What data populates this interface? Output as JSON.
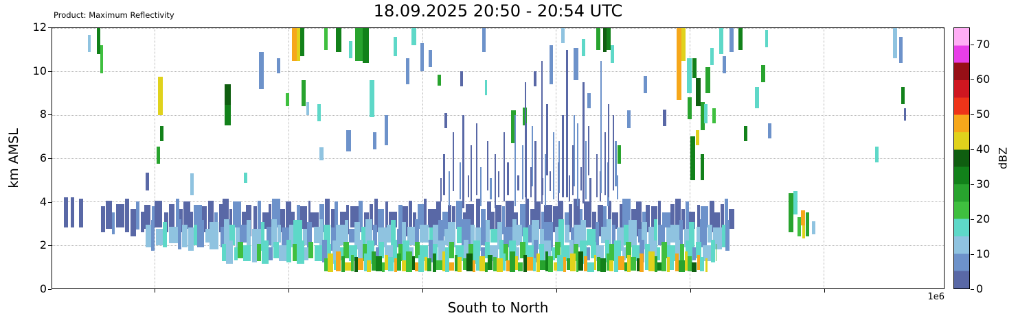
{
  "header": {
    "product_label": "Product: Maximum Reflectivity",
    "title": "18.09.2025 20:50 - 20:54 UTC"
  },
  "axes": {
    "y_label": "km AMSL",
    "x_label": "South to North",
    "x_offset_label": "1e6",
    "y_ticks": [
      0,
      2,
      4,
      6,
      8,
      10,
      12
    ],
    "y_max": 12
  },
  "colorbar": {
    "label": "dBZ",
    "ticks": [
      0,
      10,
      20,
      30,
      40,
      50,
      60,
      70
    ],
    "min": 0,
    "max": 75
  },
  "chart_data": {
    "type": "heatmap",
    "title": "18.09.2025 20:50 - 20:54 UTC",
    "xlabel": "South to North",
    "ylabel": "km AMSL",
    "ylim": [
      0,
      12
    ],
    "x_axis_offset_note": "1e6",
    "grid": true,
    "x_gridlines": [
      0.115,
      0.265,
      0.415,
      0.565,
      0.715,
      0.865
    ],
    "dbz_scale": [
      {
        "v": 0,
        "c": "#5968a6"
      },
      {
        "v": 5,
        "c": "#6d92ca"
      },
      {
        "v": 10,
        "c": "#8fc3e0"
      },
      {
        "v": 15,
        "c": "#5ed8c8"
      },
      {
        "v": 20,
        "c": "#3fbf3f"
      },
      {
        "v": 25,
        "c": "#28a32e"
      },
      {
        "v": 30,
        "c": "#12811a"
      },
      {
        "v": 35,
        "c": "#0f5e10"
      },
      {
        "v": 40,
        "c": "#e0d21c"
      },
      {
        "v": 45,
        "c": "#f6a71b"
      },
      {
        "v": 50,
        "c": "#ee3419"
      },
      {
        "v": 55,
        "c": "#cf1620"
      },
      {
        "v": 60,
        "c": "#970f16"
      },
      {
        "v": 65,
        "c": "#e83ee8"
      },
      {
        "v": 70,
        "c": "#ffaef5"
      }
    ],
    "cells": [
      [
        0.013,
        0.005,
        2.8,
        4.2,
        0
      ],
      [
        0.021,
        0.004,
        2.8,
        4.2,
        0
      ],
      [
        0.03,
        0.005,
        2.8,
        4.15,
        0
      ],
      [
        0.04,
        0.003,
        10.9,
        11.7,
        10
      ],
      [
        0.05,
        0.004,
        10.8,
        12,
        30
      ],
      [
        0.054,
        0.003,
        9.9,
        11.2,
        20
      ],
      [
        0.105,
        0.004,
        4.5,
        5.35,
        0
      ],
      [
        0.117,
        0.004,
        5.75,
        6.55,
        25
      ],
      [
        0.119,
        0.005,
        8.0,
        9.75,
        40
      ],
      [
        0.121,
        0.004,
        6.8,
        7.5,
        30
      ],
      [
        0.155,
        0.004,
        4.3,
        5.3,
        10
      ],
      [
        0.193,
        0.007,
        8.45,
        9.4,
        35
      ],
      [
        0.193,
        0.007,
        7.5,
        8.45,
        30
      ],
      [
        0.215,
        0.004,
        4.85,
        5.35,
        15
      ],
      [
        0.232,
        0.005,
        9.2,
        10.9,
        5
      ],
      [
        0.252,
        0.004,
        9.9,
        10.6,
        5
      ],
      [
        0.262,
        0.004,
        8.4,
        9.0,
        20
      ],
      [
        0.269,
        0.005,
        10.5,
        12,
        45
      ],
      [
        0.274,
        0.004,
        10.5,
        12,
        40
      ],
      [
        0.278,
        0.005,
        10.7,
        12,
        30
      ],
      [
        0.28,
        0.004,
        8.4,
        9.6,
        25
      ],
      [
        0.285,
        0.003,
        8.0,
        8.6,
        10
      ],
      [
        0.297,
        0.004,
        7.7,
        8.5,
        15
      ],
      [
        0.3,
        0.004,
        5.9,
        6.5,
        10
      ],
      [
        0.305,
        0.004,
        11.0,
        12,
        20
      ],
      [
        0.318,
        0.006,
        10.9,
        12,
        30
      ],
      [
        0.33,
        0.005,
        6.3,
        7.3,
        5
      ],
      [
        0.333,
        0.004,
        10.6,
        11.4,
        15
      ],
      [
        0.34,
        0.008,
        10.5,
        12,
        25
      ],
      [
        0.348,
        0.007,
        10.4,
        12,
        30
      ],
      [
        0.356,
        0.005,
        7.9,
        9.6,
        15
      ],
      [
        0.36,
        0.004,
        6.4,
        7.2,
        5
      ],
      [
        0.373,
        0.004,
        6.6,
        8.0,
        5
      ],
      [
        0.383,
        0.004,
        10.7,
        11.6,
        15
      ],
      [
        0.397,
        0.004,
        9.4,
        10.6,
        5
      ],
      [
        0.403,
        0.005,
        11.2,
        12,
        15
      ],
      [
        0.413,
        0.004,
        10.0,
        11.3,
        5
      ],
      [
        0.422,
        0.004,
        10.2,
        11.0,
        5
      ],
      [
        0.432,
        0.004,
        9.35,
        9.85,
        25
      ],
      [
        0.44,
        0.003,
        7.4,
        8.1,
        0
      ],
      [
        0.458,
        0.003,
        9.3,
        10.0,
        0
      ],
      [
        0.482,
        0.004,
        10.9,
        12,
        5
      ],
      [
        0.485,
        0.003,
        8.9,
        9.6,
        15
      ],
      [
        0.515,
        0.005,
        6.7,
        8.2,
        25
      ],
      [
        0.528,
        0.004,
        7.5,
        8.35,
        25
      ],
      [
        0.54,
        0.003,
        9.3,
        10.0,
        0
      ],
      [
        0.558,
        0.004,
        9.4,
        11.2,
        5
      ],
      [
        0.571,
        0.004,
        11.3,
        12,
        10
      ],
      [
        0.585,
        0.005,
        9.6,
        11.1,
        5
      ],
      [
        0.594,
        0.004,
        10.7,
        11.5,
        15
      ],
      [
        0.6,
        0.004,
        8.3,
        9.0,
        5
      ],
      [
        0.61,
        0.005,
        11.0,
        12,
        25
      ],
      [
        0.618,
        0.004,
        10.9,
        12,
        35
      ],
      [
        0.622,
        0.004,
        11.0,
        12,
        30
      ],
      [
        0.626,
        0.004,
        10.4,
        11.2,
        15
      ],
      [
        0.634,
        0.004,
        5.75,
        6.6,
        25
      ],
      [
        0.645,
        0.004,
        7.4,
        8.2,
        5
      ],
      [
        0.663,
        0.004,
        9.0,
        9.8,
        5
      ],
      [
        0.685,
        0.004,
        7.5,
        8.25,
        0
      ],
      [
        0.7,
        0.006,
        8.7,
        12,
        45
      ],
      [
        0.706,
        0.004,
        10.5,
        12,
        40
      ],
      [
        0.712,
        0.005,
        9.0,
        10.6,
        15
      ],
      [
        0.713,
        0.004,
        7.8,
        8.8,
        25
      ],
      [
        0.716,
        0.005,
        5.0,
        7.0,
        30
      ],
      [
        0.718,
        0.005,
        9.7,
        10.6,
        30
      ],
      [
        0.722,
        0.005,
        8.4,
        9.7,
        35
      ],
      [
        0.722,
        0.004,
        6.6,
        7.3,
        40
      ],
      [
        0.727,
        0.005,
        7.3,
        8.6,
        25
      ],
      [
        0.727,
        0.004,
        5.0,
        6.2,
        30
      ],
      [
        0.731,
        0.004,
        7.6,
        8.5,
        15
      ],
      [
        0.733,
        0.005,
        9.0,
        10.2,
        25
      ],
      [
        0.738,
        0.004,
        10.3,
        11.1,
        15
      ],
      [
        0.74,
        0.004,
        7.6,
        8.3,
        20
      ],
      [
        0.748,
        0.005,
        10.8,
        12,
        15
      ],
      [
        0.752,
        0.004,
        9.9,
        10.7,
        5
      ],
      [
        0.76,
        0.004,
        10.9,
        12,
        5
      ],
      [
        0.77,
        0.004,
        11.0,
        12,
        30
      ],
      [
        0.776,
        0.004,
        6.8,
        7.5,
        30
      ],
      [
        0.788,
        0.005,
        8.3,
        9.3,
        15
      ],
      [
        0.795,
        0.005,
        9.5,
        10.3,
        25
      ],
      [
        0.8,
        0.003,
        11.1,
        11.9,
        15
      ],
      [
        0.803,
        0.004,
        6.9,
        7.6,
        5
      ],
      [
        0.826,
        0.005,
        2.6,
        4.4,
        25
      ],
      [
        0.831,
        0.005,
        3.4,
        4.5,
        15
      ],
      [
        0.836,
        0.004,
        2.4,
        3.3,
        20
      ],
      [
        0.84,
        0.004,
        2.9,
        3.6,
        45
      ],
      [
        0.841,
        0.003,
        2.3,
        2.9,
        40
      ],
      [
        0.845,
        0.004,
        2.4,
        3.5,
        25
      ],
      [
        0.852,
        0.004,
        2.5,
        3.1,
        10
      ],
      [
        0.923,
        0.004,
        5.8,
        6.55,
        15
      ],
      [
        0.943,
        0.005,
        10.6,
        12,
        10
      ],
      [
        0.95,
        0.004,
        10.4,
        11.6,
        5
      ],
      [
        0.952,
        0.004,
        8.5,
        9.3,
        30
      ],
      [
        0.955,
        0.003,
        7.75,
        8.3,
        0
      ]
    ],
    "bands": [
      {
        "name": "layer-top-slate",
        "x0": 0.055,
        "x1": 0.765,
        "y_bottom": 2.6,
        "y_top": 3.8,
        "widths": [
          0.004,
          0.007,
          0.003,
          0.009,
          0.005,
          0.006,
          0.004
        ],
        "gaps": [
          0.001,
          0,
          0.002,
          0.0005,
          0.0015,
          0,
          0.001,
          0.0005
        ],
        "dbz": [
          0,
          0,
          5,
          0,
          0,
          0,
          5,
          0,
          0,
          5,
          0
        ],
        "top_jitter": [
          0,
          0.25,
          -0.3,
          0.1,
          0.35,
          -0.15,
          0.2,
          -0.25,
          0.05
        ],
        "bottom_jitter": [
          0,
          0.15,
          -0.1,
          0.2,
          0,
          -0.2,
          0.1
        ]
      },
      {
        "name": "layer-mid-blue",
        "x0": 0.105,
        "x1": 0.76,
        "y_bottom": 1.9,
        "y_top": 2.95,
        "widths": [
          0.006,
          0.004,
          0.008,
          0.005,
          0.01,
          0.004,
          0.006
        ],
        "gaps": [
          0,
          0.001,
          0,
          0.002,
          0,
          0.0005,
          0.001,
          0
        ],
        "dbz": [
          10,
          5,
          10,
          15,
          10,
          5,
          10,
          10,
          15,
          5,
          10
        ],
        "top_jitter": [
          0,
          0.2,
          -0.2,
          0.1,
          -0.1,
          0.25,
          0,
          -0.15
        ],
        "bottom_jitter": [
          0,
          -0.15,
          0.1,
          0,
          0.2,
          -0.1
        ]
      },
      {
        "name": "layer-low-cyan",
        "x0": 0.19,
        "x1": 0.745,
        "y_bottom": 1.25,
        "y_top": 2.05,
        "widths": [
          0.005,
          0.008,
          0.004,
          0.006,
          0.009,
          0.005
        ],
        "gaps": [
          0,
          0.001,
          0,
          0,
          0.0015,
          0,
          0.0005
        ],
        "dbz": [
          15,
          10,
          15,
          20,
          15,
          10,
          20,
          15,
          5
        ],
        "top_jitter": [
          0,
          0.15,
          -0.15,
          0.1,
          -0.05,
          0.2
        ],
        "bottom_jitter": [
          0,
          -0.1,
          0.05,
          0.15,
          0,
          -0.05
        ]
      },
      {
        "name": "layer-bottom-convective",
        "x0": 0.305,
        "x1": 0.735,
        "y_bottom": 0.8,
        "y_top": 1.4,
        "widths": [
          0.004,
          0.006,
          0.003,
          0.005,
          0.004,
          0.007,
          0.003
        ],
        "gaps": [
          0,
          0.0005,
          0,
          0.001,
          0,
          0,
          0.0005
        ],
        "dbz": [
          20,
          40,
          15,
          45,
          25,
          40,
          20,
          35,
          45,
          15,
          40,
          25,
          30
        ],
        "top_jitter": [
          0,
          0.2,
          -0.1,
          0.3,
          0.1,
          -0.2,
          0.15,
          0.05
        ],
        "bottom_jitter": [
          0,
          -0.05,
          0.05,
          0,
          -0.05,
          0.02
        ]
      },
      {
        "name": "mid-level-spikes",
        "x0": 0.435,
        "x1": 0.64,
        "y_bottom": 4.0,
        "y_top": 4.8,
        "widths": [
          0.0015,
          0.002,
          0.0015,
          0.0018
        ],
        "gaps": [
          0.002,
          0.004,
          0.003,
          0.006,
          0.002,
          0.0035
        ],
        "dbz": [
          0,
          0,
          5,
          0,
          5,
          0,
          0
        ],
        "top_jitter": [
          0.3,
          1.4,
          0.6,
          2.4,
          1.0,
          3.2,
          0.4,
          1.8,
          2.8,
          0.8,
          2.0
        ],
        "bottom_jitter": [
          0,
          0.3,
          -0.2,
          0.5,
          0.1,
          -0.3,
          0.2
        ]
      },
      {
        "name": "tall-spikes",
        "x0": 0.53,
        "x1": 0.64,
        "y_bottom": 4.2,
        "y_top": 8.0,
        "widths": [
          0.0015,
          0.002
        ],
        "gaps": [
          0.006,
          0.009,
          0.004,
          0.012,
          0.007
        ],
        "dbz": [
          0,
          5,
          0,
          0,
          5
        ],
        "top_jitter": [
          1.5,
          -0.5,
          2.5,
          0.5,
          -1.2,
          3.0,
          0
        ],
        "bottom_jitter": [
          0,
          0.5,
          -0.3,
          1.0,
          0.2
        ]
      }
    ]
  }
}
